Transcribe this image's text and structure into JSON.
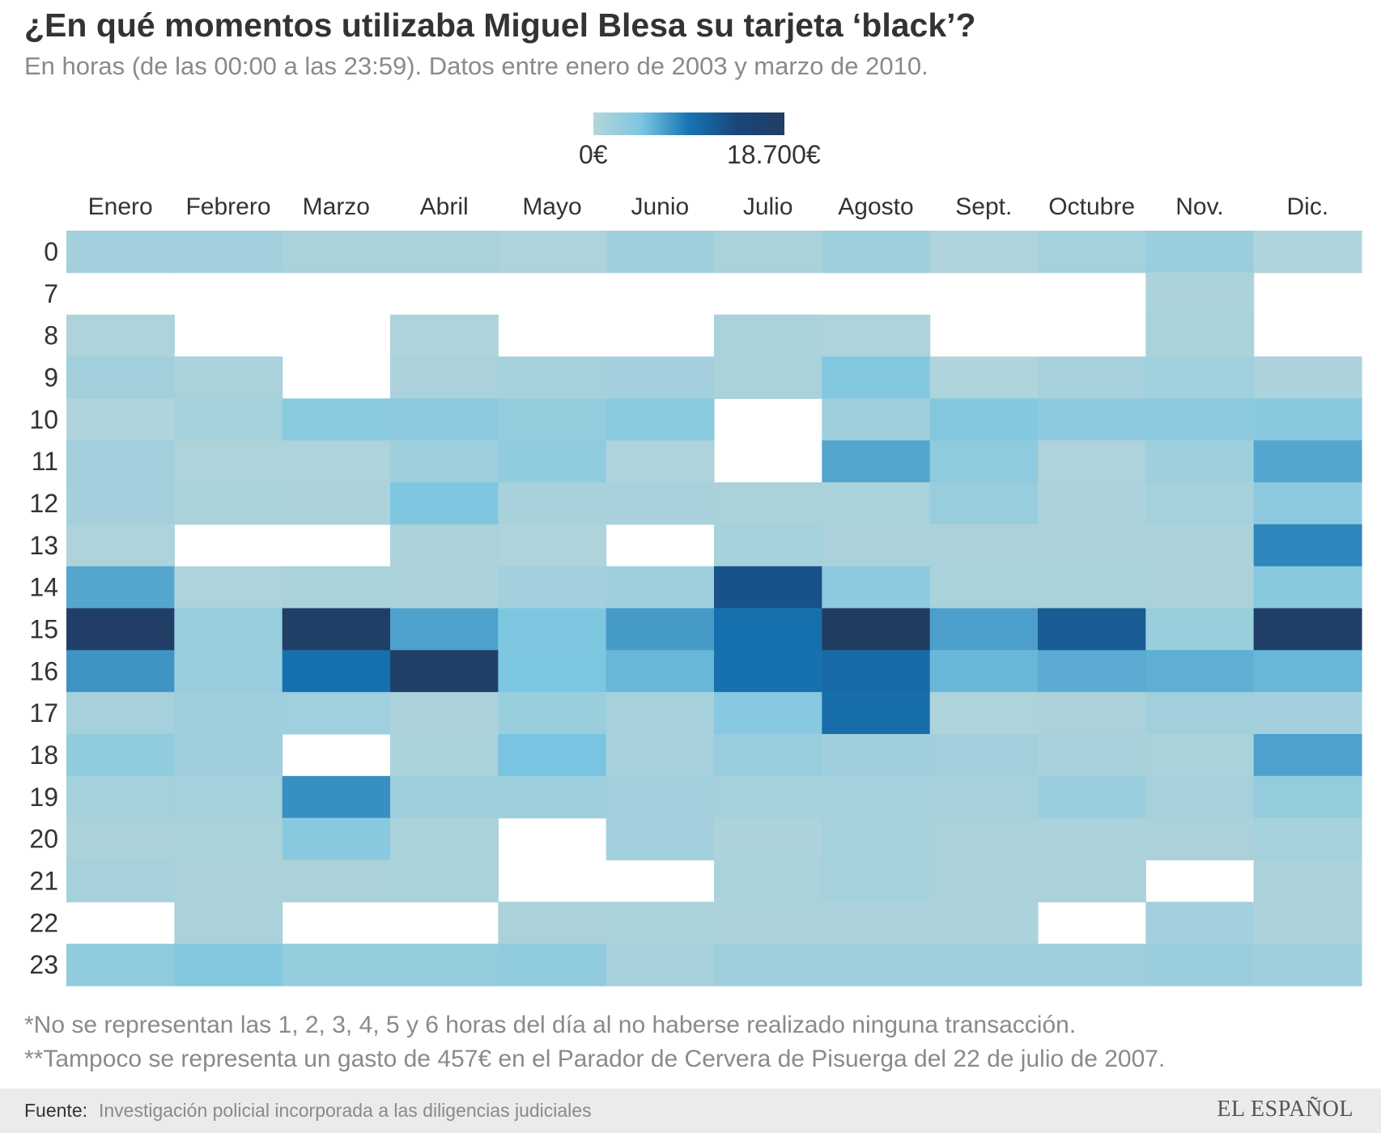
{
  "header": {
    "title": "¿En qué momentos utilizaba Miguel Blesa su tarjeta ‘black’?",
    "subtitle": "En horas (de las 00:00 a las 23:59). Datos entre enero de 2003 y marzo de 2010."
  },
  "legend": {
    "min_label": "0€",
    "max_label": "18.700€",
    "colors": [
      "#b5d5da",
      "#7cc6e1",
      "#1774b3",
      "#1a467b",
      "#223d62"
    ]
  },
  "chart_data": {
    "type": "heatmap",
    "title": "¿En qué momentos utilizaba Miguel Blesa su tarjeta ‘black’?",
    "subtitle": "En horas (de las 00:00 a las 23:59). Datos entre enero de 2003 y marzo de 2010.",
    "x": [
      "Enero",
      "Febrero",
      "Marzo",
      "Abril",
      "Mayo",
      "Junio",
      "Julio",
      "Agosto",
      "Sept.",
      "Octubre",
      "Nov.",
      "Dic."
    ],
    "y": [
      "0",
      "7",
      "8",
      "9",
      "10",
      "11",
      "12",
      "13",
      "14",
      "15",
      "16",
      "17",
      "18",
      "19",
      "20",
      "21",
      "22",
      "23"
    ],
    "value_unit": "€",
    "value_range": [
      0,
      18700
    ],
    "values": [
      [
        1500,
        1500,
        1000,
        1000,
        500,
        1800,
        1000,
        2000,
        400,
        1300,
        2200,
        400
      ],
      [
        null,
        null,
        null,
        null,
        null,
        null,
        null,
        null,
        null,
        null,
        700,
        null
      ],
      [
        600,
        null,
        null,
        600,
        null,
        null,
        1000,
        500,
        null,
        null,
        900,
        null
      ],
      [
        1600,
        1000,
        null,
        800,
        1300,
        1500,
        1000,
        4200,
        400,
        1200,
        1700,
        700
      ],
      [
        400,
        1400,
        3500,
        3300,
        2700,
        3500,
        null,
        1800,
        4000,
        3300,
        3300,
        3700
      ],
      [
        1600,
        600,
        600,
        1800,
        3000,
        500,
        null,
        6500,
        3200,
        600,
        2000,
        6500
      ],
      [
        1500,
        1000,
        700,
        4500,
        1100,
        1100,
        900,
        1000,
        2400,
        700,
        1400,
        3300
      ],
      [
        600,
        null,
        null,
        800,
        500,
        null,
        1400,
        800,
        800,
        700,
        700,
        8300
      ],
      [
        6500,
        600,
        1000,
        700,
        1500,
        2000,
        12800,
        3300,
        900,
        1000,
        800,
        3600
      ],
      [
        17900,
        2400,
        17800,
        6800,
        4500,
        7200,
        9800,
        18700,
        6900,
        11900,
        2300,
        17700
      ],
      [
        7500,
        2400,
        9800,
        17300,
        4700,
        5600,
        9800,
        10300,
        5500,
        6200,
        6000,
        5600
      ],
      [
        1200,
        2000,
        1700,
        700,
        2300,
        1200,
        3800,
        10000,
        500,
        800,
        1600,
        1500
      ],
      [
        3000,
        1800,
        null,
        900,
        4800,
        1200,
        2400,
        1800,
        1600,
        1100,
        900,
        6800
      ],
      [
        1300,
        1400,
        7800,
        2000,
        2000,
        1600,
        1300,
        1400,
        1200,
        2400,
        1200,
        2700
      ],
      [
        800,
        1000,
        3600,
        900,
        null,
        1500,
        700,
        1400,
        800,
        800,
        800,
        1300
      ],
      [
        1200,
        800,
        800,
        1000,
        null,
        null,
        1000,
        1300,
        800,
        800,
        null,
        800
      ],
      [
        null,
        800,
        null,
        null,
        800,
        900,
        700,
        700,
        700,
        null,
        1500,
        700
      ],
      [
        3000,
        4200,
        2600,
        2600,
        3000,
        1200,
        1800,
        2000,
        1800,
        1800,
        2200,
        1800
      ]
    ],
    "notes": [
      "*No se representan las 1, 2, 3, 4, 5 y 6 horas del día al no haberse realizado ninguna transacción.",
      "**Tampoco se representa un gasto de 457€ en el Parador de Cervera de Pisuerga del 22 de julio de 2007."
    ]
  },
  "footer": {
    "source_label": "Fuente:",
    "source_text": "Investigación policial incorporada a las diligencias judiciales",
    "brand": "EL ESPAÑOL"
  }
}
